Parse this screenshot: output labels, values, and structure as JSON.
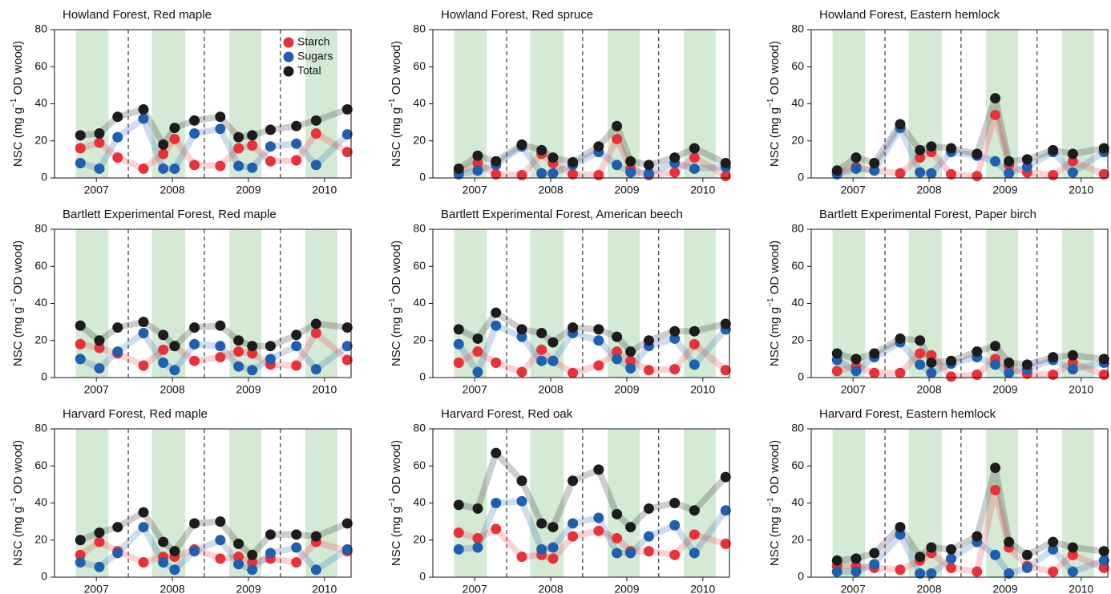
{
  "chart_data": [
    {
      "type": "line",
      "title": "Howland Forest, Red maple",
      "ylabel": [
        "NSC (mg g",
        "−1",
        " OD wood)"
      ],
      "legend": "upper right",
      "x": [
        2006.79,
        2007.04,
        2007.28,
        2007.62,
        2007.88,
        2008.03,
        2008.29,
        2008.63,
        2008.87,
        2009.05,
        2009.29,
        2009.63,
        2009.89,
        2010.3
      ],
      "xlim": [
        2006.45,
        2010.35
      ],
      "xticks": [
        2007,
        2008,
        2009,
        2010
      ],
      "ylim": [
        0,
        80
      ],
      "yticks": [
        0,
        20,
        40,
        60,
        80
      ],
      "shaded": [
        [
          2006.73,
          2007.16
        ],
        [
          2007.73,
          2008.17
        ],
        [
          2008.75,
          2009.17
        ],
        [
          2009.75,
          2010.17
        ]
      ],
      "dashed": [
        2007.42,
        2008.42,
        2009.42
      ],
      "series": [
        {
          "name": "Starch",
          "color": "#e8313a",
          "values": [
            16,
            19,
            11,
            5,
            13,
            21,
            7,
            6.5,
            16,
            17.5,
            9,
            9.5,
            24,
            14
          ]
        },
        {
          "name": "Sugars",
          "color": "#1f5fb0",
          "values": [
            8,
            5,
            22,
            32,
            5,
            5,
            24,
            26.5,
            6.5,
            5.5,
            17,
            18.5,
            7,
            23.5
          ]
        },
        {
          "name": "Total",
          "color": "#1c1c1c",
          "values": [
            23,
            24,
            33,
            37,
            18,
            27,
            31,
            33,
            22,
            23,
            26,
            28,
            31,
            37
          ]
        }
      ]
    },
    {
      "type": "line",
      "title": "Howland Forest, Red spruce",
      "ylabel": [
        "NSC (mg g",
        "−1",
        " OD wood)"
      ],
      "x": [
        2006.79,
        2007.04,
        2007.28,
        2007.62,
        2007.88,
        2008.03,
        2008.29,
        2008.63,
        2008.87,
        2009.05,
        2009.29,
        2009.63,
        2009.89,
        2010.3
      ],
      "xlim": [
        2006.45,
        2010.35
      ],
      "xticks": [
        2007,
        2008,
        2009,
        2010
      ],
      "ylim": [
        0,
        80
      ],
      "yticks": [
        0,
        20,
        40,
        60,
        80
      ],
      "shaded": [
        [
          2006.73,
          2007.16
        ],
        [
          2007.73,
          2008.17
        ],
        [
          2008.75,
          2009.17
        ],
        [
          2009.75,
          2010.17
        ]
      ],
      "dashed": [
        2007.42,
        2008.42,
        2009.42
      ],
      "series": [
        {
          "name": "Starch",
          "color": "#e8313a",
          "values": [
            3,
            8,
            2,
            1.5,
            13,
            8,
            2,
            1.5,
            21,
            5,
            1.5,
            3,
            11,
            1
          ]
        },
        {
          "name": "Sugars",
          "color": "#1f5fb0",
          "values": [
            2,
            4,
            7,
            17,
            2.5,
            2.5,
            7,
            14,
            7,
            3,
            2.5,
            8,
            5,
            6
          ]
        },
        {
          "name": "Total",
          "color": "#1c1c1c",
          "values": [
            5,
            12,
            9,
            18,
            15,
            11,
            8.5,
            17,
            28,
            9,
            7,
            11,
            16,
            8
          ]
        }
      ]
    },
    {
      "type": "line",
      "title": "Howland Forest, Eastern hemlock",
      "ylabel": [
        "NSC (mg g",
        "−1",
        " OD wood)"
      ],
      "x": [
        2006.79,
        2007.04,
        2007.28,
        2007.62,
        2007.88,
        2008.03,
        2008.29,
        2008.63,
        2008.87,
        2009.05,
        2009.29,
        2009.63,
        2009.89,
        2010.3
      ],
      "xlim": [
        2006.45,
        2010.35
      ],
      "xticks": [
        2007,
        2008,
        2009,
        2010
      ],
      "ylim": [
        0,
        80
      ],
      "yticks": [
        0,
        20,
        40,
        60,
        80
      ],
      "shaded": [
        [
          2006.73,
          2007.16
        ],
        [
          2007.73,
          2008.17
        ],
        [
          2008.75,
          2009.17
        ],
        [
          2009.75,
          2010.17
        ]
      ],
      "dashed": [
        2007.42,
        2008.42,
        2009.42
      ],
      "series": [
        {
          "name": "Starch",
          "color": "#e8313a",
          "values": [
            3,
            6,
            4,
            2.5,
            11,
            14,
            2,
            1,
            34,
            7,
            3,
            1.5,
            9,
            2
          ]
        },
        {
          "name": "Sugars",
          "color": "#1f5fb0",
          "values": [
            2,
            5,
            4,
            27,
            3,
            2.5,
            14,
            12,
            9,
            2.5,
            6,
            14,
            3,
            14
          ]
        },
        {
          "name": "Total",
          "color": "#1c1c1c",
          "values": [
            4,
            11,
            8,
            29,
            15,
            17,
            16,
            13,
            43,
            9,
            10,
            15,
            13,
            16
          ]
        }
      ]
    },
    {
      "type": "line",
      "title": "Bartlett Experimental Forest, Red maple",
      "ylabel": [
        "NSC (mg g",
        "−1",
        " OD wood)"
      ],
      "x": [
        2006.79,
        2007.04,
        2007.28,
        2007.62,
        2007.88,
        2008.03,
        2008.29,
        2008.63,
        2008.87,
        2009.05,
        2009.29,
        2009.63,
        2009.89,
        2010.3
      ],
      "xlim": [
        2006.45,
        2010.35
      ],
      "xticks": [
        2007,
        2008,
        2009,
        2010
      ],
      "ylim": [
        0,
        80
      ],
      "yticks": [
        0,
        20,
        40,
        60,
        80
      ],
      "shaded": [
        [
          2006.73,
          2007.16
        ],
        [
          2007.73,
          2008.17
        ],
        [
          2008.75,
          2009.17
        ],
        [
          2009.75,
          2010.17
        ]
      ],
      "dashed": [
        2007.42,
        2008.42,
        2009.42
      ],
      "series": [
        {
          "name": "Starch",
          "color": "#e8313a",
          "values": [
            18,
            16,
            13,
            6.5,
            15,
            17,
            9,
            11,
            14,
            13,
            7,
            6.5,
            24,
            9.5
          ]
        },
        {
          "name": "Sugars",
          "color": "#1f5fb0",
          "values": [
            10,
            5,
            14,
            24,
            8,
            4,
            18,
            17,
            6,
            4,
            10,
            17,
            4.5,
            17
          ]
        },
        {
          "name": "Total",
          "color": "#1c1c1c",
          "values": [
            28,
            20,
            27,
            30,
            23,
            17,
            27,
            28,
            20,
            17,
            17,
            23,
            29,
            27
          ]
        }
      ]
    },
    {
      "type": "line",
      "title": "Bartlett Experimental Forest, American beech",
      "ylabel": [
        "NSC (mg g",
        "−1",
        " OD wood)"
      ],
      "x": [
        2006.79,
        2007.04,
        2007.28,
        2007.62,
        2007.88,
        2008.03,
        2008.29,
        2008.63,
        2008.87,
        2009.05,
        2009.29,
        2009.63,
        2009.89,
        2010.3
      ],
      "xlim": [
        2006.45,
        2010.35
      ],
      "xticks": [
        2007,
        2008,
        2009,
        2010
      ],
      "ylim": [
        0,
        80
      ],
      "yticks": [
        0,
        20,
        40,
        60,
        80
      ],
      "shaded": [
        [
          2006.73,
          2007.16
        ],
        [
          2007.73,
          2008.17
        ],
        [
          2008.75,
          2009.17
        ],
        [
          2009.75,
          2010.17
        ]
      ],
      "dashed": [
        2007.42,
        2008.42,
        2009.42
      ],
      "series": [
        {
          "name": "Starch",
          "color": "#e8313a",
          "values": [
            8,
            14,
            8,
            3,
            15,
            9,
            2.5,
            6.5,
            14,
            9,
            4,
            4.5,
            18,
            4
          ]
        },
        {
          "name": "Sugars",
          "color": "#1f5fb0",
          "values": [
            18,
            3,
            28,
            22,
            9,
            9,
            24,
            20,
            10,
            5,
            17,
            21,
            7,
            26
          ]
        },
        {
          "name": "Total",
          "color": "#1c1c1c",
          "values": [
            26,
            21,
            35,
            26,
            24,
            19,
            27,
            26,
            22,
            14,
            20,
            25,
            25,
            29
          ]
        }
      ]
    },
    {
      "type": "line",
      "title": "Bartlett Experimental Forest, Paper birch",
      "ylabel": [
        "NSC (mg g",
        "−1",
        " OD wood)"
      ],
      "x": [
        2006.79,
        2007.04,
        2007.28,
        2007.62,
        2007.88,
        2008.03,
        2008.29,
        2008.63,
        2008.87,
        2009.05,
        2009.29,
        2009.63,
        2009.89,
        2010.3
      ],
      "xlim": [
        2006.45,
        2010.35
      ],
      "xticks": [
        2007,
        2008,
        2009,
        2010
      ],
      "ylim": [
        0,
        80
      ],
      "yticks": [
        0,
        20,
        40,
        60,
        80
      ],
      "shaded": [
        [
          2006.73,
          2007.16
        ],
        [
          2007.73,
          2008.17
        ],
        [
          2008.75,
          2009.17
        ],
        [
          2009.75,
          2010.17
        ]
      ],
      "dashed": [
        2007.42,
        2008.42,
        2009.42
      ],
      "series": [
        {
          "name": "Starch",
          "color": "#e8313a",
          "values": [
            3.5,
            6,
            2.5,
            2.5,
            13,
            12,
            0.5,
            1.5,
            10,
            6,
            2,
            1.5,
            8,
            1.5
          ]
        },
        {
          "name": "Sugars",
          "color": "#1f5fb0",
          "values": [
            9.5,
            3.5,
            11,
            19,
            7,
            2.5,
            7.5,
            11,
            7,
            2.5,
            4.5,
            9.5,
            4.5,
            8
          ]
        },
        {
          "name": "Total",
          "color": "#1c1c1c",
          "values": [
            13,
            10,
            13,
            21,
            20,
            8,
            9,
            14,
            17,
            8,
            7,
            11,
            12,
            10
          ]
        }
      ]
    },
    {
      "type": "line",
      "title": "Harvard Forest, Red maple",
      "ylabel": [
        "NSC (mg g",
        "−1",
        " OD wood)"
      ],
      "x": [
        2006.79,
        2007.04,
        2007.28,
        2007.62,
        2007.88,
        2008.03,
        2008.29,
        2008.63,
        2008.87,
        2009.05,
        2009.29,
        2009.63,
        2009.89,
        2010.3
      ],
      "xlim": [
        2006.45,
        2010.35
      ],
      "xticks": [
        2007,
        2008,
        2009,
        2010
      ],
      "ylim": [
        0,
        80
      ],
      "yticks": [
        0,
        20,
        40,
        60,
        80
      ],
      "shaded": [
        [
          2006.73,
          2007.16
        ],
        [
          2007.73,
          2008.17
        ],
        [
          2008.75,
          2009.17
        ],
        [
          2009.75,
          2010.17
        ]
      ],
      "dashed": [
        2007.42,
        2008.42,
        2009.42
      ],
      "series": [
        {
          "name": "Starch",
          "color": "#e8313a",
          "values": [
            12,
            19,
            14,
            8,
            11,
            11,
            15,
            10,
            11,
            8,
            10,
            8,
            19,
            14
          ]
        },
        {
          "name": "Sugars",
          "color": "#1f5fb0",
          "values": [
            8,
            5.5,
            13,
            27,
            8,
            4,
            14,
            20,
            7,
            4,
            13,
            16,
            4,
            15
          ]
        },
        {
          "name": "Total",
          "color": "#1c1c1c",
          "values": [
            20,
            24,
            27,
            35,
            19,
            14,
            29,
            30,
            18,
            12,
            23,
            23,
            22,
            29
          ]
        }
      ]
    },
    {
      "type": "line",
      "title": "Harvard Forest, Red oak",
      "ylabel": [
        "NSC (mg g",
        "−1",
        " OD wood)"
      ],
      "x": [
        2006.79,
        2007.04,
        2007.28,
        2007.62,
        2007.88,
        2008.03,
        2008.29,
        2008.63,
        2008.87,
        2009.05,
        2009.29,
        2009.63,
        2009.89,
        2010.3
      ],
      "xlim": [
        2006.45,
        2010.35
      ],
      "xticks": [
        2007,
        2008,
        2009,
        2010
      ],
      "ylim": [
        0,
        80
      ],
      "yticks": [
        0,
        20,
        40,
        60,
        80
      ],
      "shaded": [
        [
          2006.73,
          2007.16
        ],
        [
          2007.73,
          2008.17
        ],
        [
          2008.75,
          2009.17
        ],
        [
          2009.75,
          2010.17
        ]
      ],
      "dashed": [
        2007.42,
        2008.42,
        2009.42
      ],
      "series": [
        {
          "name": "Starch",
          "color": "#e8313a",
          "values": [
            24,
            21,
            26,
            11,
            12,
            10,
            22,
            25,
            21,
            14,
            14,
            12,
            23,
            18
          ]
        },
        {
          "name": "Sugars",
          "color": "#1f5fb0",
          "values": [
            15,
            16,
            40,
            41,
            15,
            16,
            29,
            32,
            13,
            13,
            22,
            28,
            13,
            36
          ]
        },
        {
          "name": "Total",
          "color": "#1c1c1c",
          "values": [
            39,
            37,
            67,
            52,
            29,
            27,
            52,
            58,
            34,
            27,
            37,
            40,
            36,
            54
          ]
        }
      ]
    },
    {
      "type": "line",
      "title": "Harvard Forest, Eastern hemlock",
      "ylabel": [
        "NSC (mg g",
        "−1",
        " OD wood)"
      ],
      "x": [
        2006.79,
        2007.04,
        2007.28,
        2007.62,
        2007.88,
        2008.03,
        2008.29,
        2008.63,
        2008.87,
        2009.05,
        2009.29,
        2009.63,
        2009.89,
        2010.3
      ],
      "xlim": [
        2006.45,
        2010.35
      ],
      "xticks": [
        2007,
        2008,
        2009,
        2010
      ],
      "ylim": [
        0,
        80
      ],
      "yticks": [
        0,
        20,
        40,
        60,
        80
      ],
      "shaded": [
        [
          2006.73,
          2007.16
        ],
        [
          2007.73,
          2008.17
        ],
        [
          2008.75,
          2009.17
        ],
        [
          2009.75,
          2010.17
        ]
      ],
      "dashed": [
        2007.42,
        2008.42,
        2009.42
      ],
      "series": [
        {
          "name": "Starch",
          "color": "#e8313a",
          "values": [
            6,
            6,
            5,
            4,
            9,
            13,
            5,
            3,
            47,
            16,
            6,
            3,
            12,
            5
          ]
        },
        {
          "name": "Sugars",
          "color": "#1f5fb0",
          "values": [
            3,
            3,
            7,
            23,
            2,
            2,
            10,
            19,
            12,
            2,
            5,
            15,
            3,
            9
          ]
        },
        {
          "name": "Total",
          "color": "#1c1c1c",
          "values": [
            9,
            10,
            13,
            27,
            11,
            16,
            15,
            22,
            59,
            19,
            12,
            19,
            16,
            14
          ]
        }
      ]
    }
  ]
}
